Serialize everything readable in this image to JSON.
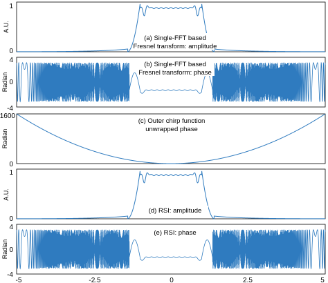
{
  "chart_data": [
    {
      "type": "line",
      "id": "a",
      "annotation": [
        "(a) Single-FFT based",
        "Fresnel transform: amplitude"
      ],
      "ylabel": "A.U.",
      "xlim": [
        -5,
        5
      ],
      "ylim": [
        0,
        1
      ],
      "yticks": [
        "0",
        "1"
      ],
      "shape": "flat-top amplitude: ~1 for |x|<1 with ripple up to ~1.0 near |x|~0.9, decaying tails to 0",
      "series": [
        {
          "color": "#2f7bbf"
        }
      ]
    },
    {
      "type": "line",
      "id": "b",
      "annotation": [
        "(b) Single-FFT based",
        "Fresnel transform: phase"
      ],
      "ylabel": "Radian",
      "xlim": [
        -5,
        5
      ],
      "ylim": [
        -4,
        4
      ],
      "yticks": [
        "-4",
        "0",
        "4"
      ],
      "shape": "wrapped phase oscillating between -3.14 and 3.14 for |x|>1.3; near-flat ~-1.5 for |x|<1",
      "series": [
        {
          "color": "#2f7bbf"
        }
      ]
    },
    {
      "type": "line",
      "id": "c",
      "annotation": [
        "(c) Outer chirp function",
        "unwrapped phase"
      ],
      "ylabel": "Radian",
      "xlim": [
        -5,
        5
      ],
      "ylim": [
        0,
        1600
      ],
      "yticks": [
        "0",
        "1600"
      ],
      "shape": "parabola: 0 at x=0, ~1600 at x=±5",
      "series": [
        {
          "color": "#2f7bbf"
        }
      ]
    },
    {
      "type": "line",
      "id": "d",
      "annotation": [
        "(d) RSI: amplitude"
      ],
      "ylabel": "A.U.",
      "xlim": [
        -5,
        5
      ],
      "ylim": [
        0,
        1
      ],
      "yticks": [
        "0",
        "1"
      ],
      "series": [
        {
          "color": "#2f7bbf"
        }
      ]
    },
    {
      "type": "line",
      "id": "e",
      "annotation": [
        "(e) RSI: phase"
      ],
      "ylabel": "Radian",
      "xlim": [
        -5,
        5
      ],
      "ylim": [
        -4,
        4
      ],
      "yticks": [
        "-4",
        "0",
        "4"
      ],
      "xticks": [
        "-5",
        "-2.5",
        "0",
        "2.5",
        "5"
      ],
      "series": [
        {
          "color": "#2f7bbf"
        }
      ]
    }
  ]
}
